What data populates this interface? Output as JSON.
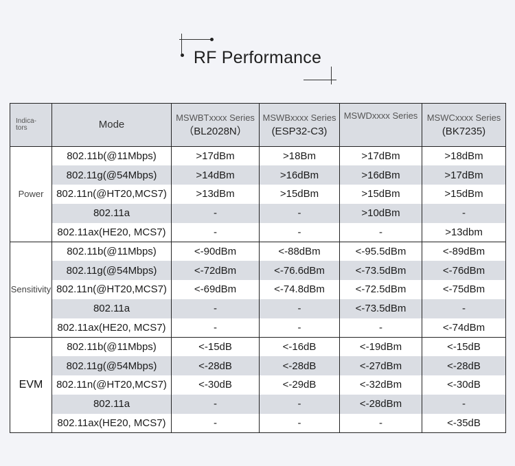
{
  "title": "RF Performance",
  "header": {
    "indicators": "Indica-tors",
    "mode": "Mode",
    "columns": [
      {
        "series": "MSWBTxxxx Series",
        "model": "（BL2028N）"
      },
      {
        "series": "MSWBxxxx Series",
        "model": "(ESP32-C3)"
      },
      {
        "series": "MSWDxxxx Series",
        "model": ""
      },
      {
        "series": "MSWCxxxx Series",
        "model": "(BK7235)"
      }
    ]
  },
  "groups": [
    {
      "name": "Power",
      "rows": [
        {
          "mode": "802.11b(@11Mbps)",
          "values": [
            ">17dBm",
            ">18Bm",
            ">17dBm",
            ">18dBm"
          ]
        },
        {
          "mode": "802.11g(@54Mbps)",
          "values": [
            ">14dBm",
            ">16dBm",
            ">16dBm",
            ">17dBm"
          ]
        },
        {
          "mode": "802.11n(@HT20,MCS7)",
          "values": [
            ">13dBm",
            ">15dBm",
            ">15dBm",
            ">15dBm"
          ]
        },
        {
          "mode": "802.11a",
          "values": [
            "-",
            "-",
            ">10dBm",
            "-"
          ]
        },
        {
          "mode": "802.11ax(HE20, MCS7)",
          "values": [
            "-",
            "-",
            "-",
            ">13dbm"
          ]
        }
      ]
    },
    {
      "name": "Sensitivity",
      "rows": [
        {
          "mode": "802.11b(@11Mbps)",
          "values": [
            "<-90dBm",
            "<-88dBm",
            "<-95.5dBm",
            "<-89dBm"
          ]
        },
        {
          "mode": "802.11g(@54Mbps)",
          "values": [
            "<-72dBm",
            "<-76.6dBm",
            "<-73.5dBm",
            "<-76dBm"
          ]
        },
        {
          "mode": "802.11n(@HT20,MCS7)",
          "values": [
            "<-69dBm",
            "<-74.8dBm",
            "<-72.5dBm",
            "<-75dBm"
          ]
        },
        {
          "mode": "802.11a",
          "values": [
            "-",
            "-",
            "<-73.5dBm",
            "-"
          ]
        },
        {
          "mode": "802.11ax(HE20, MCS7)",
          "values": [
            "-",
            "-",
            "-",
            "<-74dBm"
          ]
        }
      ]
    },
    {
      "name": "EVM",
      "rows": [
        {
          "mode": "802.11b(@11Mbps)",
          "values": [
            "<-15dB",
            "<-16dB",
            "<-19dBm",
            "<-15dB"
          ]
        },
        {
          "mode": "802.11g(@54Mbps)",
          "values": [
            "<-28dB",
            "<-28dB",
            "<-27dBm",
            "<-28dB"
          ]
        },
        {
          "mode": "802.11n(@HT20,MCS7)",
          "values": [
            "<-30dB",
            "<-29dB",
            "<-32dBm",
            "<-30dB"
          ]
        },
        {
          "mode": "802.11a",
          "values": [
            "-",
            "-",
            "<-28dBm",
            "-"
          ]
        },
        {
          "mode": "802.11ax(HE20, MCS7)",
          "values": [
            "-",
            "-",
            "-",
            "<-35dB"
          ]
        }
      ]
    }
  ]
}
